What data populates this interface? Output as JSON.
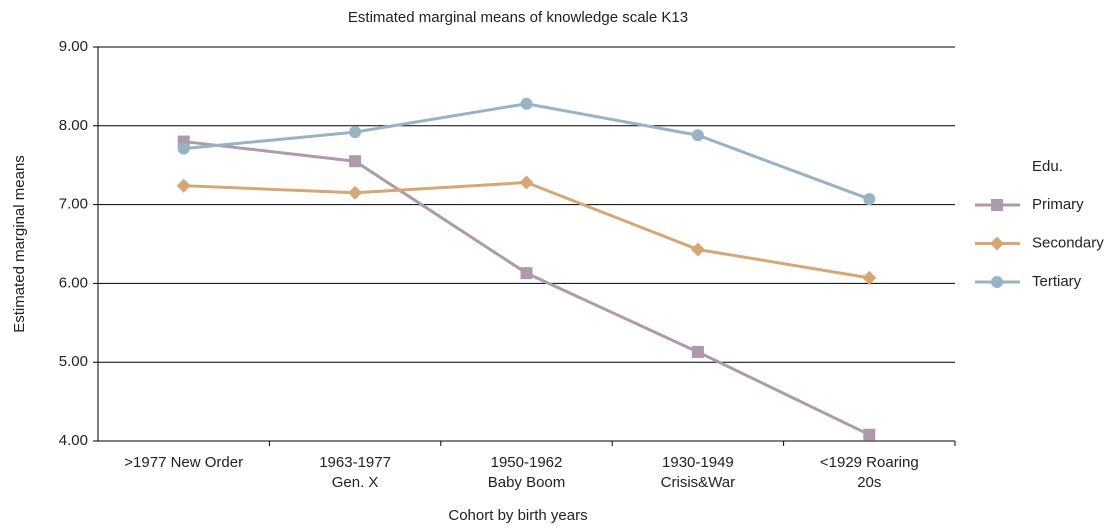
{
  "chart_data": {
    "type": "line",
    "title": "Estimated marginal means of knowledge scale K13",
    "x_label": "Cohort by birth years",
    "y_label": "Estimated marginal means",
    "legend_title": "Edu.",
    "legend_position": "right",
    "grid": true,
    "categories": [
      ">1977 New Order",
      "1963-1977\nGen. X",
      "1950-1962\nBaby Boom",
      "1930-1949\nCrisis&War",
      "<1929 Roaring\n20s"
    ],
    "ylim": [
      4,
      9
    ],
    "yticks": [
      {
        "value": 4,
        "label": "4.00"
      },
      {
        "value": 5,
        "label": "5.00"
      },
      {
        "value": 6,
        "label": "6.00"
      },
      {
        "value": 7,
        "label": "7.00"
      },
      {
        "value": 8,
        "label": "8.00"
      },
      {
        "value": 9,
        "label": "9.00"
      }
    ],
    "series": [
      {
        "name": "Primary",
        "color": "#ad9bab",
        "marker": "square",
        "values": [
          7.8,
          7.55,
          6.13,
          5.13,
          4.08
        ]
      },
      {
        "name": "Secondary",
        "color": "#d6a775",
        "marker": "diamond",
        "values": [
          7.24,
          7.15,
          7.28,
          6.43,
          6.07
        ]
      },
      {
        "name": "Tertiary",
        "color": "#98b3c3",
        "marker": "circle",
        "values": [
          7.71,
          7.92,
          8.28,
          7.88,
          7.07
        ]
      }
    ]
  }
}
